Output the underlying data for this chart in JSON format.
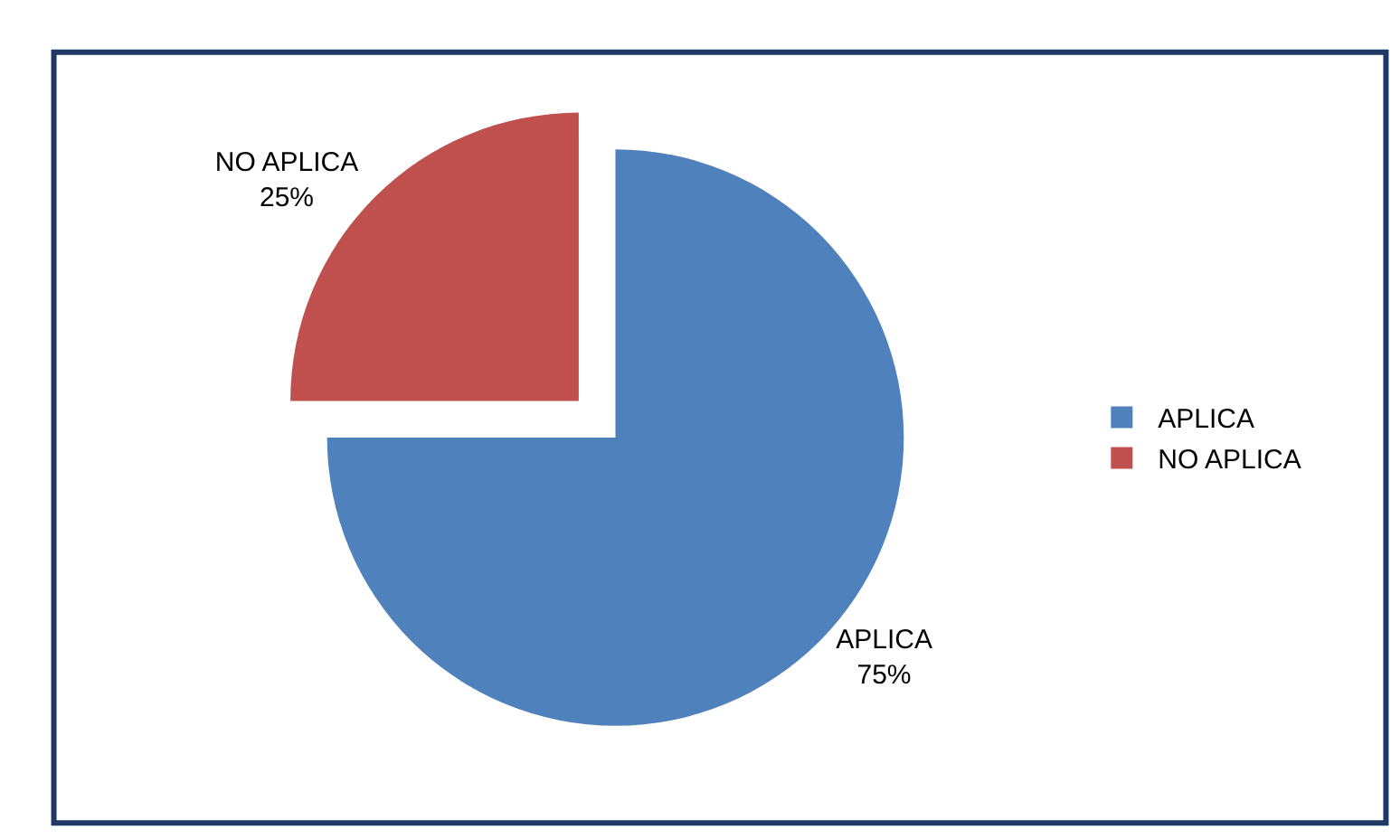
{
  "chart_data": {
    "type": "pie",
    "categories": [
      "APLICA",
      "NO APLICA"
    ],
    "values": [
      75,
      25
    ],
    "value_labels": [
      "75%",
      "25%"
    ],
    "colors": [
      "#4f81bd",
      "#c0504d"
    ],
    "legend": "right"
  }
}
